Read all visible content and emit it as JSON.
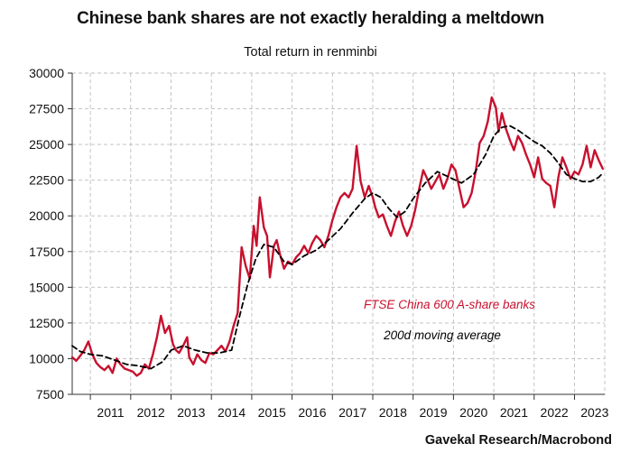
{
  "title": "Chinese bank shares are not exactly heralding a meltdown",
  "subtitle": "Total return in renminbi",
  "source": "Gavekal Research/Macrobond",
  "colors": {
    "series1": "#c8102e",
    "series2": "#000000",
    "grid": "#bdbdbd",
    "axis": "#333333"
  },
  "chart_data": {
    "type": "line",
    "title": "Chinese bank shares are not exactly heralding a meltdown",
    "subtitle": "Total return in renminbi",
    "xlabel": "",
    "ylabel": "",
    "xlim": [
      2010.55,
      2023.75
    ],
    "ylim": [
      7500,
      30000
    ],
    "x_ticks": [
      "2011",
      "2012",
      "2013",
      "2014",
      "2015",
      "2016",
      "2017",
      "2018",
      "2019",
      "2020",
      "2021",
      "2022",
      "2023"
    ],
    "y_ticks": [
      "30000",
      "27500",
      "25000",
      "22500",
      "20000",
      "17500",
      "15000",
      "12500",
      "10000",
      "7500"
    ],
    "grid": true,
    "series": [
      {
        "name": "FTSE China 600 A-share banks",
        "style": "solid",
        "x": [
          2010.55,
          2010.65,
          2010.75,
          2010.85,
          2010.95,
          2011.05,
          2011.15,
          2011.25,
          2011.35,
          2011.45,
          2011.55,
          2011.65,
          2011.75,
          2011.85,
          2011.95,
          2012.05,
          2012.15,
          2012.25,
          2012.35,
          2012.45,
          2012.55,
          2012.65,
          2012.75,
          2012.85,
          2012.95,
          2013.05,
          2013.12,
          2013.2,
          2013.3,
          2013.4,
          2013.45,
          2013.55,
          2013.65,
          2013.75,
          2013.85,
          2013.95,
          2014.05,
          2014.15,
          2014.25,
          2014.35,
          2014.45,
          2014.55,
          2014.65,
          2014.75,
          2014.85,
          2014.95,
          2015.05,
          2015.12,
          2015.2,
          2015.3,
          2015.38,
          2015.45,
          2015.5,
          2015.55,
          2015.62,
          2015.7,
          2015.8,
          2015.9,
          2016.0,
          2016.1,
          2016.2,
          2016.3,
          2016.4,
          2016.5,
          2016.6,
          2016.7,
          2016.8,
          2016.9,
          2017.0,
          2017.1,
          2017.2,
          2017.3,
          2017.4,
          2017.5,
          2017.6,
          2017.7,
          2017.8,
          2017.9,
          2018.0,
          2018.06,
          2018.15,
          2018.25,
          2018.35,
          2018.45,
          2018.55,
          2018.65,
          2018.75,
          2018.85,
          2018.95,
          2019.05,
          2019.15,
          2019.25,
          2019.35,
          2019.45,
          2019.55,
          2019.65,
          2019.75,
          2019.85,
          2019.95,
          2020.05,
          2020.15,
          2020.25,
          2020.35,
          2020.45,
          2020.55,
          2020.65,
          2020.75,
          2020.85,
          2020.95,
          2021.05,
          2021.12,
          2021.2,
          2021.3,
          2021.4,
          2021.5,
          2021.6,
          2021.7,
          2021.8,
          2021.9,
          2022.0,
          2022.1,
          2022.2,
          2022.3,
          2022.4,
          2022.5,
          2022.6,
          2022.7,
          2022.8,
          2022.9,
          2023.0,
          2023.1,
          2023.2,
          2023.3,
          2023.4,
          2023.5,
          2023.6,
          2023.7
        ],
        "y": [
          10100,
          9850,
          10200,
          10600,
          11200,
          10300,
          9700,
          9400,
          9200,
          9500,
          9000,
          10000,
          9600,
          9300,
          9200,
          9100,
          8800,
          9000,
          9600,
          9300,
          10300,
          11500,
          13000,
          11800,
          12300,
          11000,
          10600,
          10400,
          10900,
          11500,
          10100,
          9600,
          10300,
          9900,
          9700,
          10400,
          10300,
          10600,
          10900,
          10500,
          11200,
          12300,
          13200,
          17800,
          16500,
          15600,
          19300,
          17900,
          21300,
          19200,
          18600,
          15700,
          16800,
          17900,
          18300,
          17300,
          16300,
          16800,
          16600,
          17100,
          17400,
          17900,
          17400,
          18100,
          18600,
          18300,
          17800,
          18600,
          19700,
          20600,
          21300,
          21600,
          21300,
          21900,
          24900,
          22400,
          21300,
          22100,
          21300,
          20600,
          19900,
          20100,
          19300,
          18600,
          19600,
          20300,
          19300,
          18600,
          19300,
          20400,
          21900,
          23200,
          22600,
          21900,
          22400,
          22900,
          21900,
          22600,
          23600,
          23200,
          21900,
          20600,
          20900,
          21600,
          23100,
          25100,
          25600,
          26600,
          28300,
          27600,
          25900,
          27200,
          26100,
          25300,
          24600,
          25600,
          25100,
          24300,
          23600,
          22700,
          24100,
          22600,
          22300,
          22100,
          20600,
          22700,
          24100,
          23400,
          22600,
          23100,
          22900,
          23600,
          24900,
          23400,
          24600,
          23900,
          23300
        ],
        "color": "#c8102e"
      },
      {
        "name": "200d moving average",
        "style": "dashed",
        "x": [
          2010.55,
          2010.75,
          2011.0,
          2011.3,
          2011.6,
          2011.9,
          2012.2,
          2012.5,
          2012.8,
          2013.0,
          2013.3,
          2013.6,
          2013.9,
          2014.2,
          2014.5,
          2014.7,
          2014.9,
          2015.1,
          2015.3,
          2015.55,
          2015.8,
          2016.0,
          2016.3,
          2016.6,
          2016.9,
          2017.2,
          2017.5,
          2017.8,
          2018.0,
          2018.2,
          2018.4,
          2018.6,
          2018.8,
          2019.0,
          2019.3,
          2019.6,
          2019.9,
          2020.2,
          2020.5,
          2020.8,
          2021.0,
          2021.2,
          2021.4,
          2021.6,
          2021.8,
          2022.0,
          2022.2,
          2022.4,
          2022.6,
          2022.8,
          2023.0,
          2023.2,
          2023.4,
          2023.6,
          2023.7
        ],
        "y": [
          10900,
          10500,
          10300,
          10200,
          9900,
          9600,
          9500,
          9300,
          9800,
          10600,
          10900,
          10600,
          10400,
          10400,
          10600,
          13000,
          15200,
          17000,
          18000,
          17800,
          16800,
          16600,
          17200,
          17600,
          18300,
          19100,
          20200,
          21200,
          21600,
          21300,
          20500,
          19900,
          20300,
          21200,
          22300,
          23100,
          22700,
          22300,
          22900,
          24300,
          25600,
          26200,
          26300,
          26000,
          25600,
          25200,
          24900,
          24400,
          23700,
          22900,
          22600,
          22400,
          22400,
          22700,
          23000
        ],
        "color": "#000000"
      }
    ],
    "annotations": [
      {
        "text": "FTSE China 600 A-share banks",
        "color": "#c8102e"
      },
      {
        "text": "200d moving average",
        "color": "#000000"
      }
    ]
  }
}
